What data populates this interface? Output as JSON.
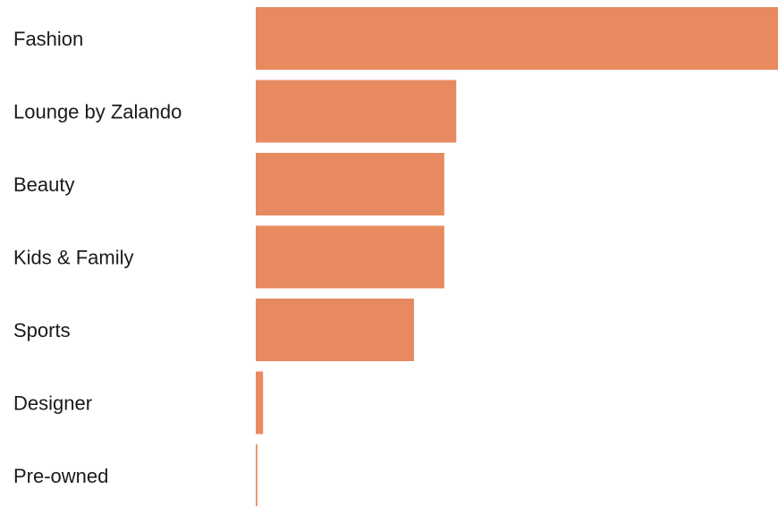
{
  "chart_data": {
    "type": "bar",
    "orientation": "horizontal",
    "categories": [
      "Fashion",
      "Lounge by Zalando",
      "Beauty",
      "Kids & Family",
      "Sports",
      "Designer",
      "Pre-owned"
    ],
    "values": [
      100,
      38.4,
      36.1,
      36.1,
      30.3,
      1.4,
      0.3
    ],
    "color": "#e88a60",
    "xlim": [
      0,
      100
    ]
  }
}
